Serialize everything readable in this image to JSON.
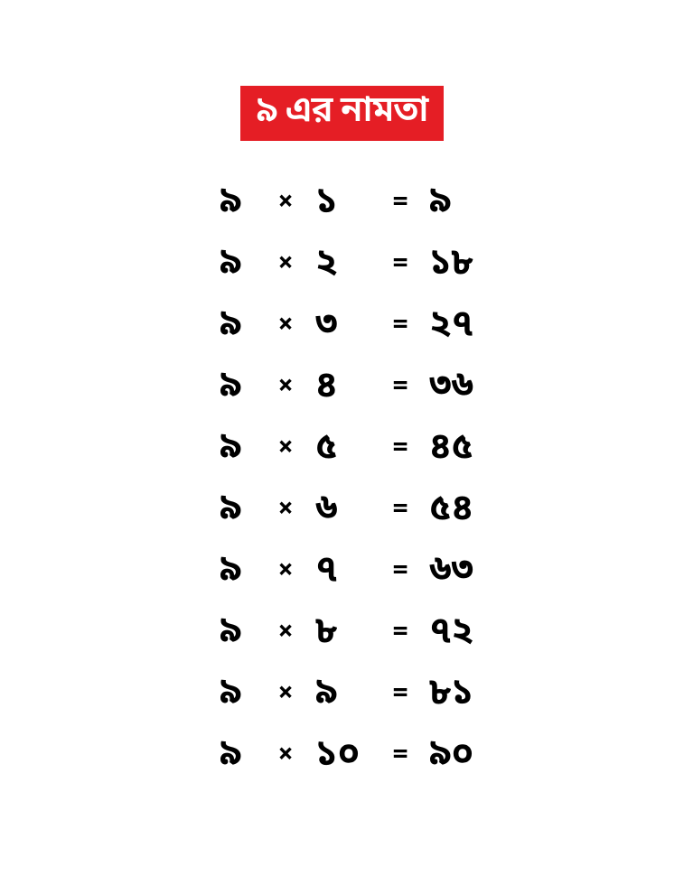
{
  "title": "৯ এর নামতা",
  "colors": {
    "title_bg": "#e51e25",
    "title_text": "#ffffff",
    "text": "#000000",
    "background": "#ffffff"
  },
  "typography": {
    "title_fontsize": 40,
    "row_fontsize": 40,
    "operator_fontsize": 30,
    "font_weight": 700
  },
  "symbols": {
    "times": "×",
    "equals": "="
  },
  "rows": [
    {
      "multiplicand": "৯",
      "multiplier": "১",
      "result": "৯"
    },
    {
      "multiplicand": "৯",
      "multiplier": "২",
      "result": "১৮"
    },
    {
      "multiplicand": "৯",
      "multiplier": "৩",
      "result": "২৭"
    },
    {
      "multiplicand": "৯",
      "multiplier": "৪",
      "result": "৩৬"
    },
    {
      "multiplicand": "৯",
      "multiplier": "৫",
      "result": "৪৫"
    },
    {
      "multiplicand": "৯",
      "multiplier": "৬",
      "result": "৫৪"
    },
    {
      "multiplicand": "৯",
      "multiplier": "৭",
      "result": "৬৩"
    },
    {
      "multiplicand": "৯",
      "multiplier": "৮",
      "result": "৭২"
    },
    {
      "multiplicand": "৯",
      "multiplier": "৯",
      "result": "৮১"
    },
    {
      "multiplicand": "৯",
      "multiplier": "১০",
      "result": "৯০"
    }
  ]
}
